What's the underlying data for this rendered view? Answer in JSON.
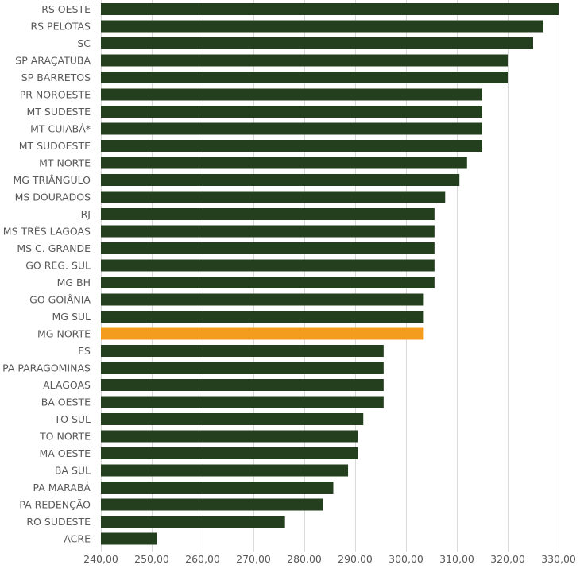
{
  "chart_data": {
    "type": "bar",
    "orientation": "horizontal",
    "categories": [
      "RS OESTE",
      "RS PELOTAS",
      "SC",
      "SP ARAÇATUBA",
      "SP BARRETOS",
      "PR NOROESTE",
      "MT SUDESTE",
      "MT CUIABÁ*",
      "MT SUDOESTE",
      "MT NORTE",
      "MG TRIÂNGULO",
      "MS DOURADOS",
      "RJ",
      "MS TRÊS LAGOAS",
      "MS C. GRANDE",
      "GO REG. SUL",
      "MG BH",
      "GO GOIÂNIA",
      "MG SUL",
      "MG NORTE",
      "ES",
      "PA PARAGOMINAS",
      "ALAGOAS",
      "BA OESTE",
      "TO SUL",
      "TO NORTE",
      "MA OESTE",
      "BA SUL",
      "PA MARABÁ",
      "PA REDENÇÃO",
      "RO SUDESTE",
      "ACRE"
    ],
    "values": [
      330,
      327,
      325,
      320,
      320,
      315,
      315,
      315,
      315,
      312,
      310.5,
      307.7,
      305.6,
      305.6,
      305.6,
      305.6,
      305.6,
      303.5,
      303.5,
      303.5,
      295.6,
      295.6,
      295.6,
      295.6,
      291.6,
      290.5,
      290.5,
      288.6,
      285.7,
      283.7,
      276.2,
      251
    ],
    "highlight_category": "MG NORTE",
    "xlim": [
      240,
      330
    ],
    "x_ticks": [
      240,
      250,
      260,
      270,
      280,
      290,
      300,
      310,
      320,
      330
    ],
    "x_tick_labels": [
      "240,00",
      "250,00",
      "260,00",
      "270,00",
      "280,00",
      "290,00",
      "300,00",
      "310,00",
      "320,00",
      "330,00"
    ],
    "title": "",
    "xlabel": "",
    "ylabel": "",
    "grid": "vertical",
    "legend": "none"
  },
  "colors": {
    "bar": "#243f1d",
    "highlight": "#f39c1d",
    "grid": "#d9d9d9",
    "text": "#595959"
  }
}
